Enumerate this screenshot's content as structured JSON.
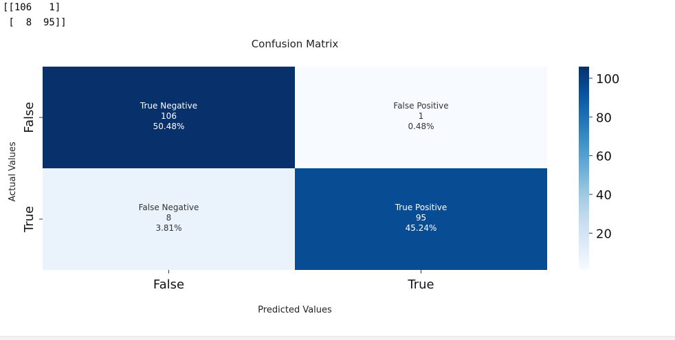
{
  "console": {
    "lines": [
      "[[106   1]",
      " [  8  95]]"
    ]
  },
  "chart_data": {
    "type": "heatmap",
    "title": "Confusion Matrix",
    "xlabel": "Predicted Values",
    "ylabel": "Actual Values",
    "x_categories": [
      "False",
      "True"
    ],
    "y_categories": [
      "False",
      "True"
    ],
    "matrix": [
      [
        106,
        1
      ],
      [
        8,
        95
      ]
    ],
    "cells": [
      [
        {
          "label": "True Negative",
          "count": "106",
          "percent": "50.48%"
        },
        {
          "label": "False Positive",
          "count": "1",
          "percent": "0.48%"
        }
      ],
      [
        {
          "label": "False Negative",
          "count": "8",
          "percent": "3.81%"
        },
        {
          "label": "True Positive",
          "count": "95",
          "percent": "45.24%"
        }
      ]
    ],
    "colormap": "Blues",
    "colorbar": {
      "range": [
        1,
        106
      ],
      "ticks": [
        20,
        40,
        60,
        80,
        100
      ],
      "tick_labels": [
        "20",
        "40",
        "60",
        "80",
        "100"
      ]
    },
    "colors": {
      "low": "#f7fbff",
      "high": "#08306b",
      "text_light": "#ffffff",
      "text_dark": "#333333"
    }
  }
}
